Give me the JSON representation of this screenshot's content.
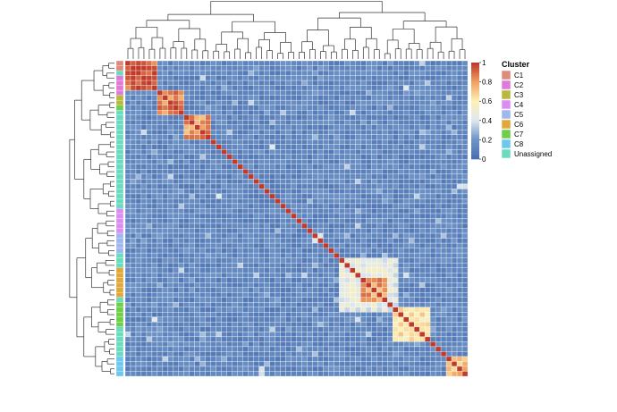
{
  "chart_data": {
    "type": "heatmap",
    "title": "",
    "xlabel": "",
    "ylabel": "",
    "n_samples": 64,
    "value_range": [
      0,
      1
    ],
    "colorscale": {
      "stops": [
        {
          "value": 0.0,
          "color": "#4a6fb0"
        },
        {
          "value": 0.2,
          "color": "#6f95c8"
        },
        {
          "value": 0.4,
          "color": "#dfe8ef"
        },
        {
          "value": 0.6,
          "color": "#fdf1b4"
        },
        {
          "value": 0.8,
          "color": "#f1a260"
        },
        {
          "value": 1.0,
          "color": "#c0392b"
        }
      ],
      "ticks": [
        "0",
        "0.2",
        "0.4",
        "0.6",
        "0.8",
        "1"
      ]
    },
    "blocks": [
      {
        "start": 0,
        "end": 5,
        "value": 0.92
      },
      {
        "start": 6,
        "end": 10,
        "value": 0.86
      },
      {
        "start": 11,
        "end": 15,
        "value": 0.82
      },
      {
        "start": 40,
        "end": 50,
        "value": 0.45
      },
      {
        "start": 44,
        "end": 48,
        "value": 0.8
      },
      {
        "start": 50,
        "end": 56,
        "value": 0.62
      },
      {
        "start": 60,
        "end": 63,
        "value": 0.7
      }
    ],
    "diagonal_value": 1.0,
    "background_value": 0.12,
    "cluster_legend": {
      "title": "Cluster",
      "entries": [
        {
          "label": "C1",
          "color": "#e08a7c"
        },
        {
          "label": "C2",
          "color": "#e07ad8"
        },
        {
          "label": "C3",
          "color": "#b9b83c"
        },
        {
          "label": "C4",
          "color": "#dc8ef0"
        },
        {
          "label": "C5",
          "color": "#9fb6f0"
        },
        {
          "label": "C6",
          "color": "#e0a83a"
        },
        {
          "label": "C7",
          "color": "#6fcf4a"
        },
        {
          "label": "C8",
          "color": "#6bc8ee"
        },
        {
          "label": "Unassigned",
          "color": "#6bdbc0"
        }
      ]
    },
    "row_clusters": [
      "C1",
      "C1",
      "Unassigned",
      "C2",
      "C2",
      "C2",
      "C2",
      "C3",
      "C3",
      "C7",
      "Unassigned",
      "Unassigned",
      "Unassigned",
      "Unassigned",
      "Unassigned",
      "Unassigned",
      "Unassigned",
      "Unassigned",
      "Unassigned",
      "Unassigned",
      "Unassigned",
      "Unassigned",
      "Unassigned",
      "Unassigned",
      "Unassigned",
      "Unassigned",
      "Unassigned",
      "Unassigned",
      "Unassigned",
      "Unassigned",
      "C4",
      "C4",
      "C4",
      "C4",
      "C4",
      "C5",
      "C5",
      "C5",
      "C5",
      "Unassigned",
      "Unassigned",
      "Unassigned",
      "C6",
      "C6",
      "C6",
      "C6",
      "C6",
      "C6",
      "Unassigned",
      "C7",
      "C7",
      "C7",
      "C7",
      "C7",
      "Unassigned",
      "Unassigned",
      "Unassigned",
      "Unassigned",
      "Unassigned",
      "Unassigned",
      "C8",
      "C8",
      "C8",
      "C8"
    ]
  }
}
